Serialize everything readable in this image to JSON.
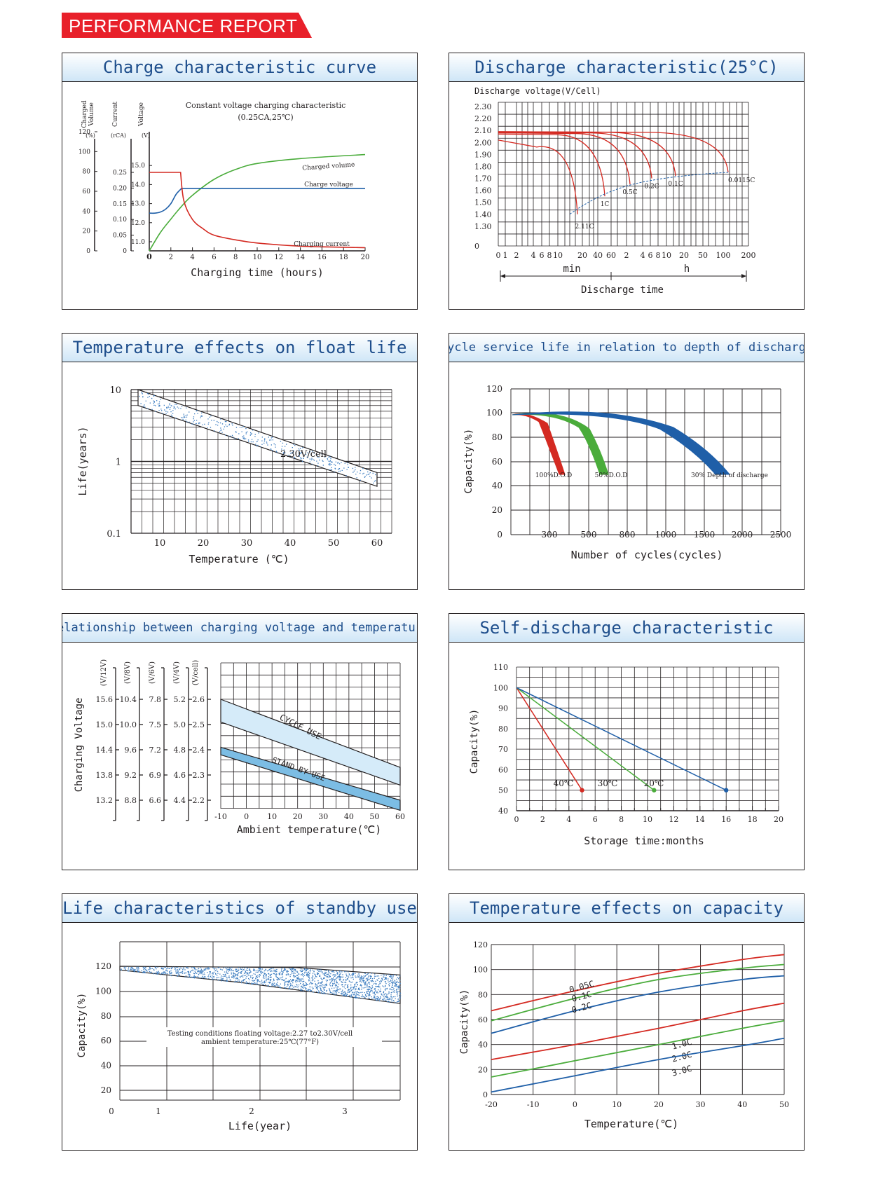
{
  "banner": {
    "title": "PERFORMANCE REPORT",
    "color": "#e8202a"
  },
  "colors": {
    "red": "#d42a22",
    "green": "#4aac3b",
    "blue": "#1f5fa8",
    "header_text": "#1e4e8c",
    "grid": "#231f20"
  },
  "panels": {
    "charge": {
      "title": "Charge characteristic curve"
    },
    "discharge": {
      "title": "Discharge characteristic(25°C)"
    },
    "float_life": {
      "title": "Temperature effects on float life"
    },
    "cycle_life": {
      "title": "Cycle service life in relation to depth of discharge"
    },
    "charge_voltage": {
      "title": "Relationship between charging voltage and temperature"
    },
    "self_discharge": {
      "title": "Self-discharge characteristic"
    },
    "standby_life": {
      "title": "Life characteristics of standby use"
    },
    "temp_capacity": {
      "title": "Temperature effects on capacity"
    }
  },
  "chart_data": [
    {
      "id": "charge",
      "type": "line",
      "title": "Constant voltage charging characteristic",
      "subtitle": "(0.25CA,25℃)",
      "xlabel": "Charging time (hours)",
      "x_ticks": [
        "0",
        "2",
        "4",
        "6",
        "8",
        "10",
        "12",
        "14",
        "16",
        "18",
        "20"
      ],
      "axes": [
        {
          "label": "Charged Volume",
          "unit": "(%)",
          "ticks": [
            "0",
            "20",
            "40",
            "60",
            "80",
            "100",
            "120"
          ]
        },
        {
          "label": "Current",
          "unit": "(rCA)",
          "ticks": [
            "0",
            "0.05",
            "0.10",
            "0.15",
            "0.20",
            "0.25"
          ]
        },
        {
          "label": "Voltage",
          "unit": "(V)",
          "ticks": [
            "11.0",
            "12.0",
            "13.0",
            "14.0",
            "15.0"
          ]
        }
      ],
      "series": [
        {
          "name": "Charged volume",
          "axis": "%",
          "x": [
            0,
            1,
            2,
            3,
            4,
            6,
            8,
            10,
            14,
            20
          ],
          "y": [
            0,
            18,
            32,
            45,
            56,
            72,
            82,
            88,
            93,
            97
          ]
        },
        {
          "name": "Charge voltage",
          "axis": "V",
          "x": [
            0,
            0.5,
            1,
            1.5,
            2,
            2.5,
            3,
            8,
            20
          ],
          "y": [
            12.5,
            12.5,
            12.55,
            12.7,
            13.0,
            13.5,
            13.8,
            13.8,
            13.8
          ]
        },
        {
          "name": "Charging current",
          "axis": "CA",
          "x": [
            0,
            2.9,
            3.2,
            4,
            5,
            6,
            8,
            10,
            14,
            20
          ],
          "y": [
            0.25,
            0.25,
            0.16,
            0.1,
            0.07,
            0.05,
            0.035,
            0.025,
            0.015,
            0.01
          ]
        }
      ]
    },
    {
      "id": "discharge",
      "type": "line",
      "ylabel": "Discharge voltage(V/Cell)",
      "xlabel": "Discharge time",
      "x_units": [
        "min",
        "h"
      ],
      "y_ticks": [
        "2.30",
        "2.20",
        "2.10",
        "2.00",
        "1.90",
        "1.80",
        "1.70",
        "1.60",
        "1.50",
        "1.40",
        "1.30",
        "0"
      ],
      "x_ticks": [
        "0",
        "1",
        "2",
        "4",
        "6",
        "8",
        "10",
        "20",
        "40",
        "60",
        "2",
        "4",
        "6",
        "8",
        "10",
        "20",
        "50",
        "100",
        "200"
      ],
      "series": [
        {
          "name": "2.11C",
          "end_voltage": 1.4
        },
        {
          "name": "1C",
          "end_voltage": 1.55
        },
        {
          "name": "0.5C",
          "end_voltage": 1.65
        },
        {
          "name": "0.2C",
          "end_voltage": 1.7
        },
        {
          "name": "0.1C",
          "end_voltage": 1.72
        },
        {
          "name": "0.0115C",
          "end_voltage": 1.75
        }
      ]
    },
    {
      "id": "float_life",
      "type": "area",
      "xlabel": "Temperature (℃)",
      "ylabel": "Life(years)",
      "scale": "log",
      "x_ticks": [
        "10",
        "20",
        "30",
        "40",
        "50",
        "60"
      ],
      "y_ticks": [
        "0.1",
        "1",
        "10"
      ],
      "annotation": "2.30V/cell",
      "band_upper": [
        {
          "x": 5,
          "y": 10
        },
        {
          "x": 60,
          "y": 0.7
        }
      ],
      "band_lower": [
        {
          "x": 5,
          "y": 6
        },
        {
          "x": 60,
          "y": 0.45
        }
      ]
    },
    {
      "id": "cycle_life",
      "type": "line",
      "xlabel": "Number of cycles(cycles)",
      "ylabel": "Capacity(%)",
      "x_ticks": [
        "0",
        "300",
        "500",
        "800",
        "1000",
        "1500",
        "2000",
        "2500"
      ],
      "y_ticks": [
        "20",
        "40",
        "60",
        "80",
        "100",
        "120"
      ],
      "series": [
        {
          "name": "100%D.O.D",
          "end_cycles": 320
        },
        {
          "name": "50%D.O.D",
          "end_cycles": 750
        },
        {
          "name": "30% Depth of discharge",
          "end_cycles": 2000
        }
      ]
    },
    {
      "id": "charge_voltage",
      "type": "area",
      "xlabel": "Ambient temperature(℃)",
      "ylabel": "Charging Voltage",
      "x_ticks": [
        "-10",
        "0",
        "10",
        "20",
        "30",
        "40",
        "50",
        "60"
      ],
      "axes": [
        {
          "unit": "(V/12V)",
          "ticks": [
            "15.6",
            "15.0",
            "14.4",
            "13.8",
            "13.2"
          ]
        },
        {
          "unit": "(V/8V)",
          "ticks": [
            "10.4",
            "10.0",
            "9.6",
            "9.2",
            "8.8"
          ]
        },
        {
          "unit": "(V/6V)",
          "ticks": [
            "7.8",
            "7.5",
            "7.2",
            "6.9",
            "6.6"
          ]
        },
        {
          "unit": "(V/4V)",
          "ticks": [
            "5.2",
            "5.0",
            "4.8",
            "4.6",
            "4.4"
          ]
        },
        {
          "unit": "(V/cell)",
          "ticks": [
            "2.6",
            "2.5",
            "2.4",
            "2.3",
            "2.2"
          ]
        }
      ],
      "series": [
        {
          "name": "CYCLE USE",
          "upper": [
            [
              -10,
              2.6
            ],
            [
              60,
              2.33
            ]
          ],
          "lower": [
            [
              -10,
              2.51
            ],
            [
              60,
              2.26
            ]
          ]
        },
        {
          "name": "STAND BY USE",
          "upper": [
            [
              -10,
              2.41
            ],
            [
              60,
              2.2
            ]
          ],
          "lower": [
            [
              -10,
              2.38
            ],
            [
              60,
              2.16
            ]
          ]
        }
      ]
    },
    {
      "id": "self_discharge",
      "type": "line",
      "xlabel": "Storage time:months",
      "ylabel": "Capacity(%)",
      "x_ticks": [
        "0",
        "2",
        "4",
        "6",
        "8",
        "10",
        "12",
        "14",
        "16",
        "18",
        "20"
      ],
      "y_ticks": [
        "40",
        "50",
        "60",
        "70",
        "80",
        "90",
        "100",
        "110"
      ],
      "series": [
        {
          "name": "40℃",
          "x": [
            0,
            5
          ],
          "y": [
            100,
            50
          ]
        },
        {
          "name": "30℃",
          "x": [
            0,
            10.5
          ],
          "y": [
            100,
            50
          ]
        },
        {
          "name": "20℃",
          "x": [
            0,
            16
          ],
          "y": [
            100,
            50
          ]
        }
      ]
    },
    {
      "id": "standby_life",
      "type": "area",
      "xlabel": "Life(year)",
      "ylabel": "Capacity(%)",
      "x_ticks": [
        "0",
        "1",
        "2",
        "3"
      ],
      "y_ticks": [
        "20",
        "40",
        "60",
        "80",
        "100",
        "120"
      ],
      "note_line1": "Testing conditions floating voltage:2.27 to2.30V/cell",
      "note_line2": "ambient temperature:25℃(77°F)",
      "band_upper": [
        [
          0,
          100
        ],
        [
          2.2,
          99
        ],
        [
          3.5,
          93
        ]
      ],
      "band_lower": [
        [
          0,
          97
        ],
        [
          1.5,
          87
        ],
        [
          3.5,
          70
        ]
      ]
    },
    {
      "id": "temp_capacity",
      "type": "line",
      "xlabel": "Temperature(℃)",
      "ylabel": "Capacity(%)",
      "x_ticks": [
        "-20",
        "-10",
        "0",
        "10",
        "20",
        "30",
        "40",
        "50"
      ],
      "y_ticks": [
        "0",
        "20",
        "40",
        "60",
        "80",
        "100",
        "120"
      ],
      "series": [
        {
          "name": "0.05C",
          "x": [
            -20,
            0,
            20,
            40,
            50
          ],
          "y": [
            67,
            83,
            97,
            108,
            112
          ]
        },
        {
          "name": "0.1C",
          "x": [
            -20,
            0,
            20,
            40,
            50
          ],
          "y": [
            59,
            77,
            92,
            101,
            104
          ]
        },
        {
          "name": "0.2C",
          "x": [
            -20,
            0,
            20,
            40,
            50
          ],
          "y": [
            49,
            67,
            82,
            92,
            95
          ]
        },
        {
          "name": "1.0C",
          "x": [
            -20,
            0,
            20,
            40,
            50
          ],
          "y": [
            28,
            40,
            53,
            67,
            73
          ]
        },
        {
          "name": "2.0C",
          "x": [
            -20,
            0,
            20,
            40,
            50
          ],
          "y": [
            14,
            27,
            40,
            53,
            59
          ]
        },
        {
          "name": "3.0C",
          "x": [
            -20,
            0,
            20,
            40,
            50
          ],
          "y": [
            2,
            15,
            28,
            39,
            45
          ]
        }
      ]
    }
  ]
}
